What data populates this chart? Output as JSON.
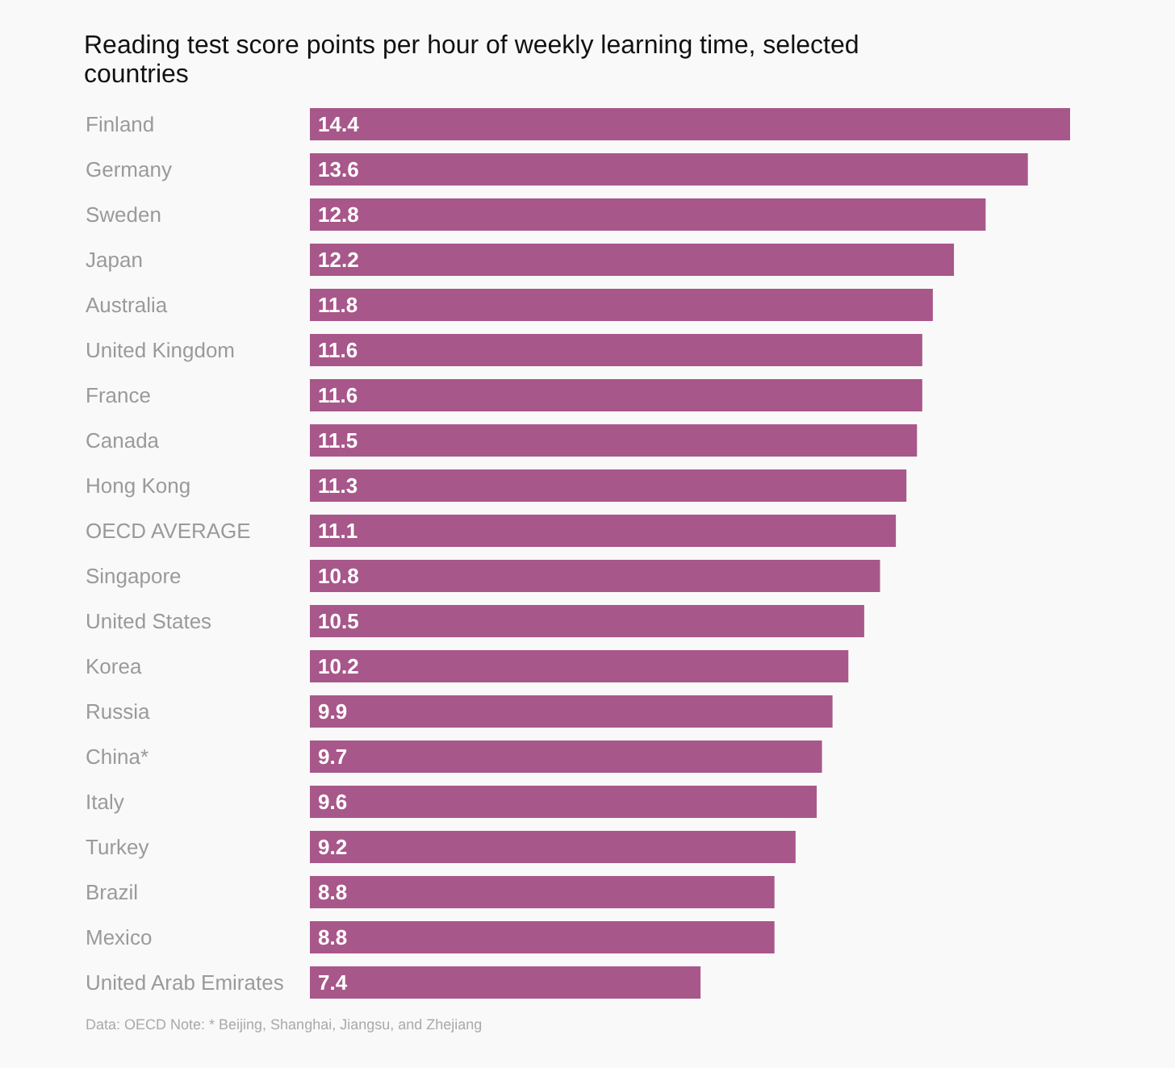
{
  "chart_data": {
    "type": "bar",
    "orientation": "horizontal",
    "title": "Reading test score points per hour of weekly learning time, selected countries",
    "categories": [
      "Finland",
      "Germany",
      "Sweden",
      "Japan",
      "Australia",
      "United Kingdom",
      "France",
      "Canada",
      "Hong Kong",
      "OECD AVERAGE",
      "Singapore",
      "United States",
      "Korea",
      "Russia",
      "China*",
      "Italy",
      "Turkey",
      "Brazil",
      "Mexico",
      "United Arab Emirates"
    ],
    "values": [
      14.4,
      13.6,
      12.8,
      12.2,
      11.8,
      11.6,
      11.6,
      11.5,
      11.3,
      11.1,
      10.8,
      10.5,
      10.2,
      9.9,
      9.7,
      9.6,
      9.2,
      8.8,
      8.8,
      7.4
    ],
    "color": "#a8578a",
    "data_labels": true,
    "annotations": [
      "Data: OECD Note: * Beijing, Shanghai, Jiangsu, and Zhejiang"
    ]
  }
}
